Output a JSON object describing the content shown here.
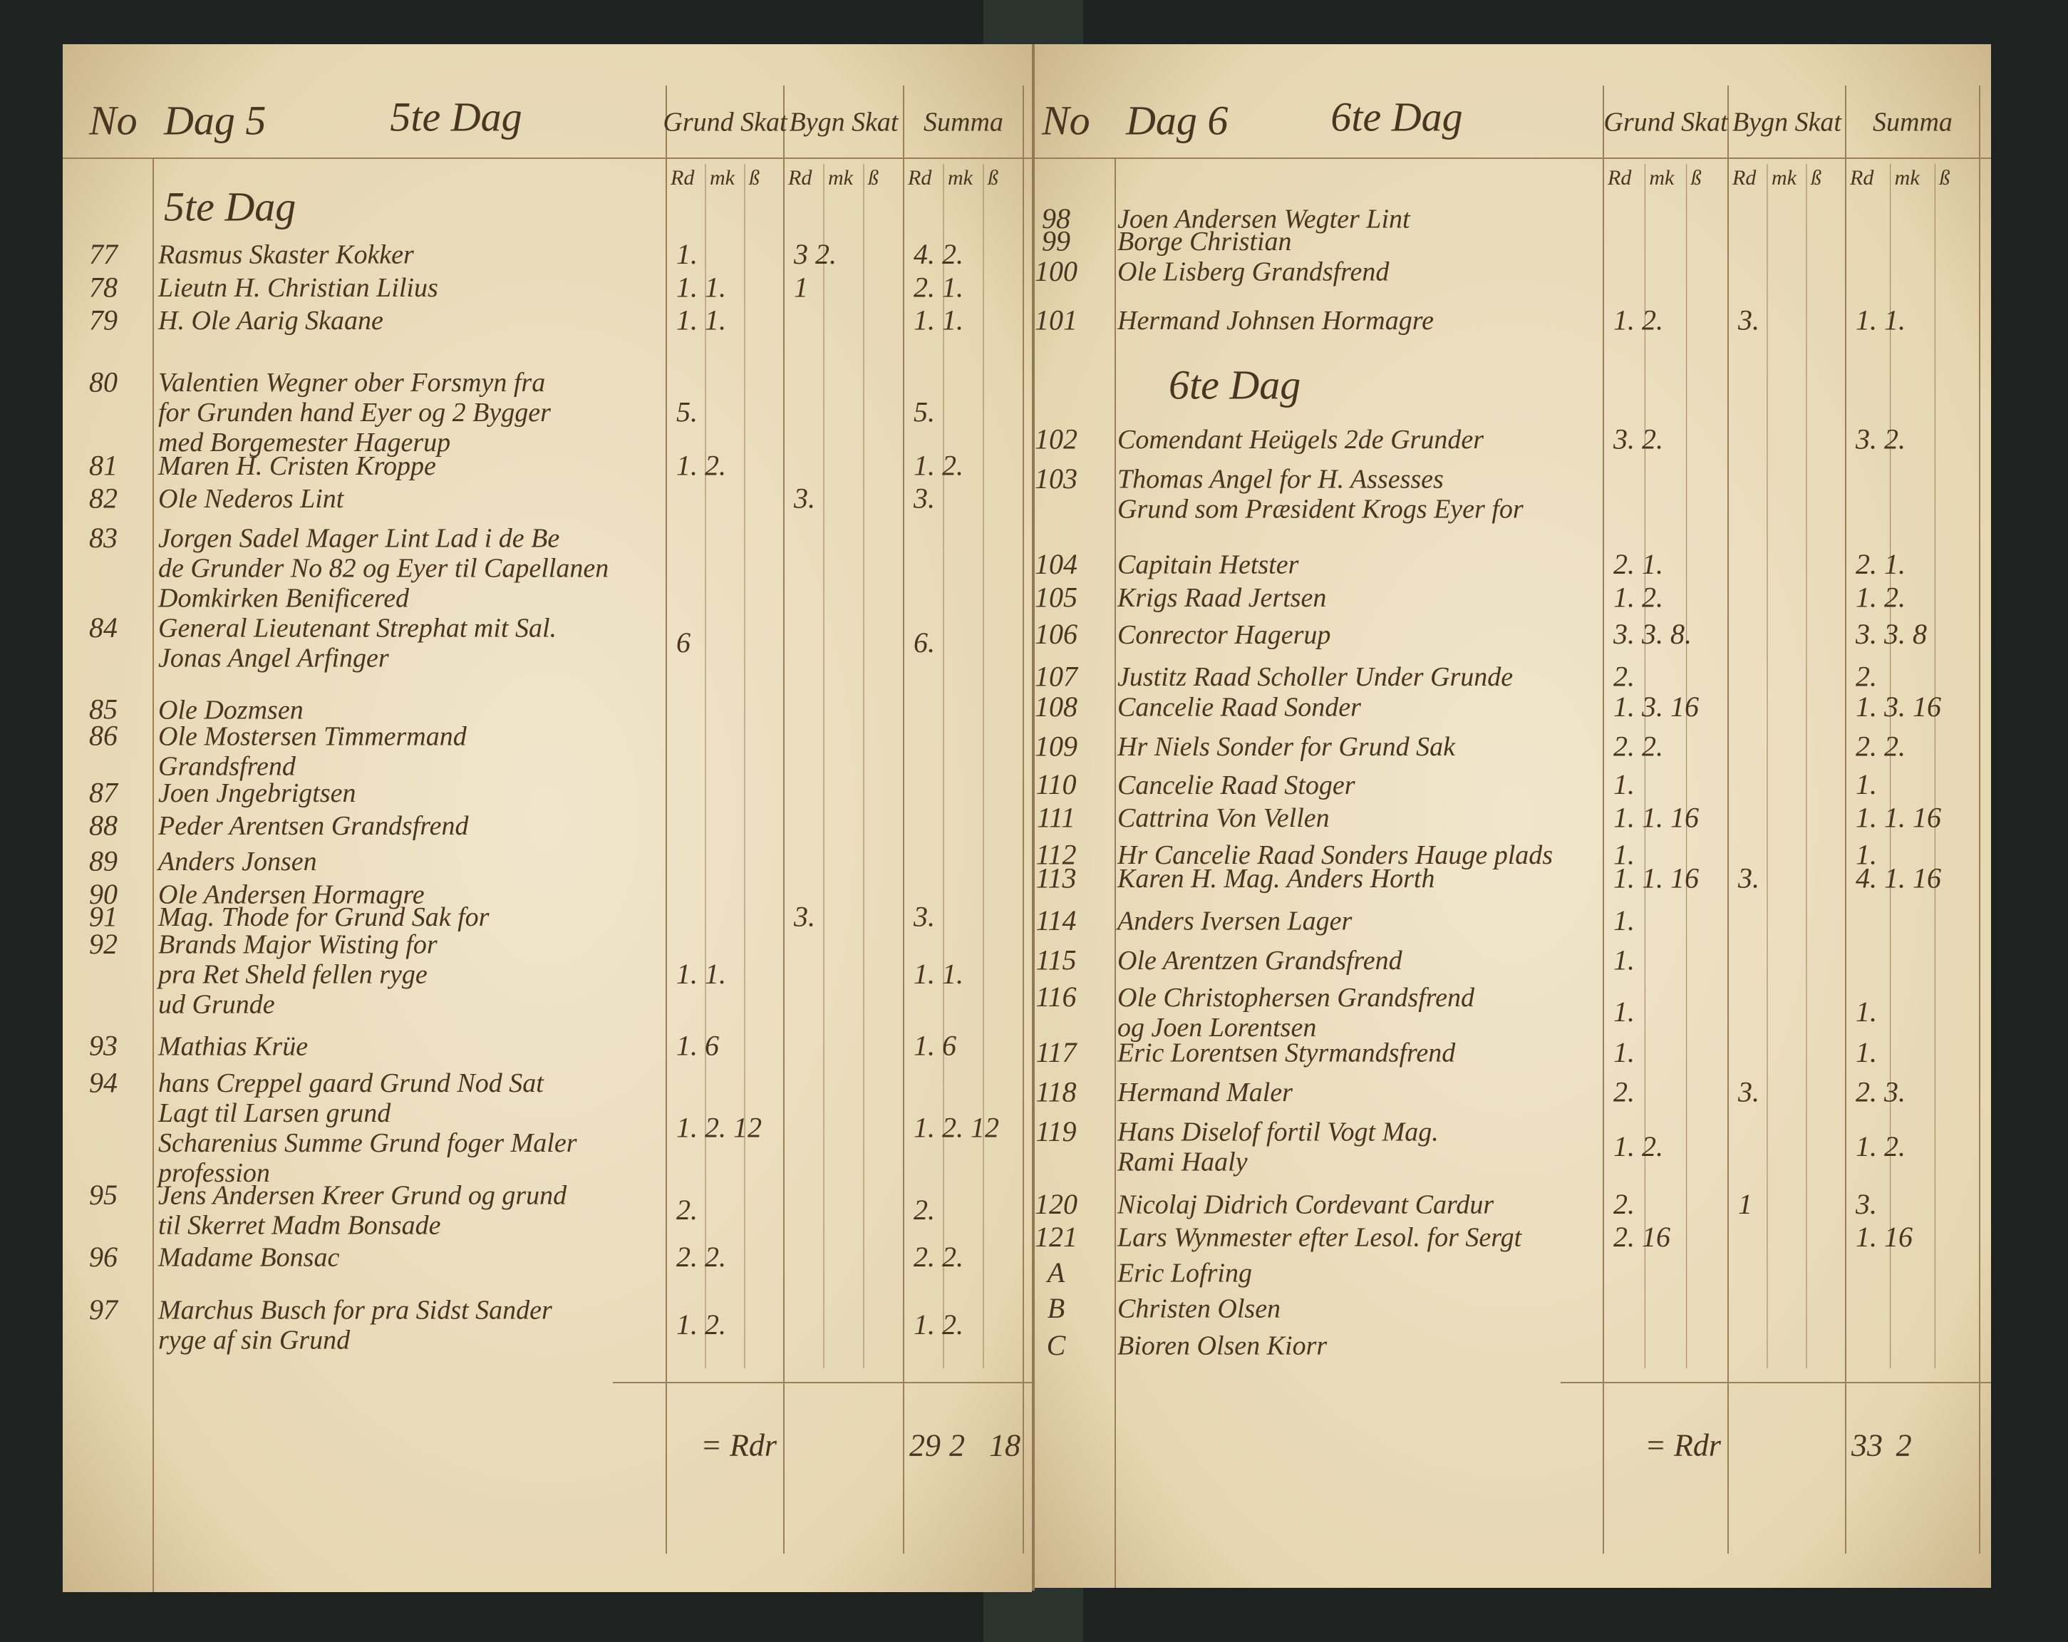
{
  "left_page": {
    "header": {
      "no": "No",
      "dag": "Dag 5",
      "title": "5te Dag",
      "grund": "Grund Skat",
      "bygn": "Bygn Skat",
      "summa": "Summa",
      "units": [
        "Rd",
        "mk",
        "ß",
        "Rd",
        "mk",
        "ß",
        "Rd",
        "mk",
        "ß"
      ]
    },
    "section": "5te Dag",
    "rows": [
      {
        "no": "77",
        "lines": [
          "Rasmus Skaster Kokker"
        ],
        "grund": "1.",
        "bygn": "3 2.",
        "summa": "4. 2."
      },
      {
        "no": "78",
        "lines": [
          "Lieutn H. Christian Lilius"
        ],
        "grund": "1. 1.",
        "bygn": "1",
        "summa": "2. 1."
      },
      {
        "no": "79",
        "lines": [
          "H. Ole Aarig Skaane"
        ],
        "grund": "1. 1.",
        "bygn": "",
        "summa": "1. 1."
      },
      {
        "no": "80",
        "lines": [
          "Valentien Wegner ober Forsmyn fra",
          "for Grunden hand Eyer og 2 Bygger",
          "med Borgemester Hagerup"
        ],
        "grund": "5.",
        "bygn": "",
        "summa": "5."
      },
      {
        "no": "81",
        "lines": [
          "Maren H. Cristen Kroppe"
        ],
        "grund": "1. 2.",
        "bygn": "",
        "summa": "1. 2."
      },
      {
        "no": "82",
        "lines": [
          "Ole Nederos Lint"
        ],
        "grund": "",
        "bygn": "3.",
        "summa": "3."
      },
      {
        "no": "83",
        "lines": [
          "Jorgen Sadel Mager Lint   Lad i de Be",
          "de Grunder No 82 og Eyer   til Capellanen",
          "Domkirken Benificered"
        ],
        "grund": "",
        "bygn": "",
        "summa": ""
      },
      {
        "no": "84",
        "lines": [
          "General Lieutenant Strephat mit Sal.",
          "Jonas Angel Arfinger"
        ],
        "grund": "6",
        "bygn": "",
        "summa": "6."
      },
      {
        "no": "85",
        "lines": [
          "Ole Dozmsen"
        ],
        "grund": "",
        "bygn": "",
        "summa": ""
      },
      {
        "no": "86",
        "lines": [
          "Ole Mostersen Timmermand",
          "Grandsfrend"
        ],
        "grund": "",
        "bygn": "",
        "summa": ""
      },
      {
        "no": "87",
        "lines": [
          "Joen Jngebrigtsen"
        ],
        "grund": "",
        "bygn": "",
        "summa": ""
      },
      {
        "no": "88",
        "lines": [
          "Peder Arentsen Grandsfrend"
        ],
        "grund": "",
        "bygn": "",
        "summa": ""
      },
      {
        "no": "89",
        "lines": [
          "Anders Jonsen"
        ],
        "grund": "",
        "bygn": "",
        "summa": ""
      },
      {
        "no": "90",
        "lines": [
          "Ole Andersen Hormagre"
        ],
        "grund": "",
        "bygn": "",
        "summa": ""
      },
      {
        "no": "91",
        "lines": [
          "Mag. Thode for Grund Sak for"
        ],
        "grund": "",
        "bygn": "3.",
        "summa": "3."
      },
      {
        "no": "92",
        "lines": [
          "Brands Major Wisting for",
          "pra Ret Sheld fellen ryge",
          "ud Grunde"
        ],
        "grund": "1. 1.",
        "bygn": "",
        "summa": "1. 1."
      },
      {
        "no": "93",
        "lines": [
          "Mathias Krüe"
        ],
        "grund": "1. 6",
        "bygn": "",
        "summa": "1. 6"
      },
      {
        "no": "94",
        "lines": [
          "hans Creppel gaard Grund Nod Sat",
          "Lagt til Larsen grund",
          "Scharenius Summe Grund foger Maler",
          "profession"
        ],
        "grund": "1. 2. 12",
        "bygn": "",
        "summa": "1. 2. 12"
      },
      {
        "no": "95",
        "lines": [
          "Jens Andersen Kreer Grund og grund",
          "til Skerret Madm Bonsade"
        ],
        "grund": "2.",
        "bygn": "",
        "summa": "2."
      },
      {
        "no": "96",
        "lines": [
          "Madame Bonsac"
        ],
        "grund": "2. 2.",
        "bygn": "",
        "summa": "2. 2."
      },
      {
        "no": "97",
        "lines": [
          "Marchus Busch for pra Sidst Sander",
          "ryge af sin Grund"
        ],
        "grund": "1. 2.",
        "bygn": "",
        "summa": "1. 2."
      }
    ],
    "total": {
      "label": "= Rdr",
      "rd": "29",
      "mk": "2",
      "sk": "18"
    }
  },
  "right_page": {
    "header": {
      "no": "No",
      "dag": "Dag 6",
      "title": "6te Dag",
      "grund": "Grund Skat",
      "bygn": "Bygn Skat",
      "summa": "Summa",
      "units": [
        "Rd",
        "mk",
        "ß",
        "Rd",
        "mk",
        "ß",
        "Rd",
        "mk",
        "ß"
      ]
    },
    "section": "6te Dag",
    "rows": [
      {
        "no": "98",
        "lines": [
          "Joen Andersen Wegter Lint"
        ],
        "grund": "",
        "bygn": "",
        "summa": ""
      },
      {
        "no": "99",
        "lines": [
          "Borge Christian"
        ],
        "grund": "",
        "bygn": "",
        "summa": ""
      },
      {
        "no": "100",
        "lines": [
          "Ole Lisberg Grandsfrend"
        ],
        "grund": "",
        "bygn": "",
        "summa": ""
      },
      {
        "no": "101",
        "lines": [
          "Hermand Johnsen Hormagre"
        ],
        "grund": "1. 2.",
        "bygn": "3.",
        "summa": "1. 1."
      },
      {
        "no": "102",
        "lines": [
          "Comendant Heügels 2de Grunder"
        ],
        "grund": "3. 2.",
        "bygn": "",
        "summa": "3. 2."
      },
      {
        "no": "103",
        "lines": [
          "Thomas Angel for H. Assesses",
          "Grund som Præsident Krogs Eyer for"
        ],
        "grund": "",
        "bygn": "",
        "summa": ""
      },
      {
        "no": "104",
        "lines": [
          "Capitain Hetster"
        ],
        "grund": "2. 1.",
        "bygn": "",
        "summa": "2. 1."
      },
      {
        "no": "105",
        "lines": [
          "Krigs Raad Jertsen"
        ],
        "grund": "1. 2.",
        "bygn": "",
        "summa": "1. 2."
      },
      {
        "no": "106",
        "lines": [
          "Conrector Hagerup"
        ],
        "grund": "3. 3. 8.",
        "bygn": "",
        "summa": "3. 3. 8"
      },
      {
        "no": "107",
        "lines": [
          "Justitz Raad Scholler Under Grunde"
        ],
        "grund": "2.",
        "bygn": "",
        "summa": "2."
      },
      {
        "no": "108",
        "lines": [
          "Cancelie Raad Sonder"
        ],
        "grund": "1. 3. 16",
        "bygn": "",
        "summa": "1. 3. 16"
      },
      {
        "no": "109",
        "lines": [
          "Hr Niels Sonder for Grund Sak"
        ],
        "grund": "2. 2.",
        "bygn": "",
        "summa": "2. 2."
      },
      {
        "no": "110",
        "lines": [
          "Cancelie Raad Stoger"
        ],
        "grund": "1.",
        "bygn": "",
        "summa": "1."
      },
      {
        "no": "111",
        "lines": [
          "Cattrina Von Vellen"
        ],
        "grund": "1. 1. 16",
        "bygn": "",
        "summa": "1. 1. 16"
      },
      {
        "no": "112",
        "lines": [
          "Hr Cancelie Raad Sonders Hauge plads"
        ],
        "grund": "1.",
        "bygn": "",
        "summa": "1."
      },
      {
        "no": "113",
        "lines": [
          "Karen H. Mag. Anders Horth"
        ],
        "grund": "1. 1. 16",
        "bygn": "3.",
        "summa": "4. 1. 16"
      },
      {
        "no": "114",
        "lines": [
          "Anders Iversen Lager"
        ],
        "grund": "1.",
        "bygn": "",
        "summa": ""
      },
      {
        "no": "115",
        "lines": [
          "Ole Arentzen Grandsfrend"
        ],
        "grund": "1.",
        "bygn": "",
        "summa": ""
      },
      {
        "no": "116",
        "lines": [
          "Ole Christophersen Grandsfrend",
          "og Joen Lorentsen"
        ],
        "grund": "1.",
        "bygn": "",
        "summa": "1."
      },
      {
        "no": "117",
        "lines": [
          "Eric Lorentsen Styrmandsfrend"
        ],
        "grund": "1.",
        "bygn": "",
        "summa": "1."
      },
      {
        "no": "118",
        "lines": [
          "Hermand Maler"
        ],
        "grund": "2.",
        "bygn": "3.",
        "summa": "2. 3."
      },
      {
        "no": "119",
        "lines": [
          "Hans Diselof fortil Vogt Mag.",
          "Rami Haaly"
        ],
        "grund": "1. 2.",
        "bygn": "",
        "summa": "1. 2."
      },
      {
        "no": "120",
        "lines": [
          "Nicolaj Didrich Cordevant Cardur"
        ],
        "grund": "2.",
        "bygn": "1",
        "summa": "3."
      },
      {
        "no": "121",
        "lines": [
          "Lars Wynmester efter Lesol. for Sergt"
        ],
        "grund": "2. 16",
        "bygn": "",
        "summa": "1. 16"
      },
      {
        "no": "A",
        "lines": [
          "Eric Lofring"
        ],
        "grund": "",
        "bygn": "",
        "summa": ""
      },
      {
        "no": "B",
        "lines": [
          "Christen Olsen"
        ],
        "grund": "",
        "bygn": "",
        "summa": ""
      },
      {
        "no": "C",
        "lines": [
          "Bioren Olsen Kiorr"
        ],
        "grund": "",
        "bygn": "",
        "summa": ""
      }
    ],
    "total": {
      "label": "= Rdr",
      "rd": "33",
      "mk": "2",
      "sk": ""
    }
  }
}
